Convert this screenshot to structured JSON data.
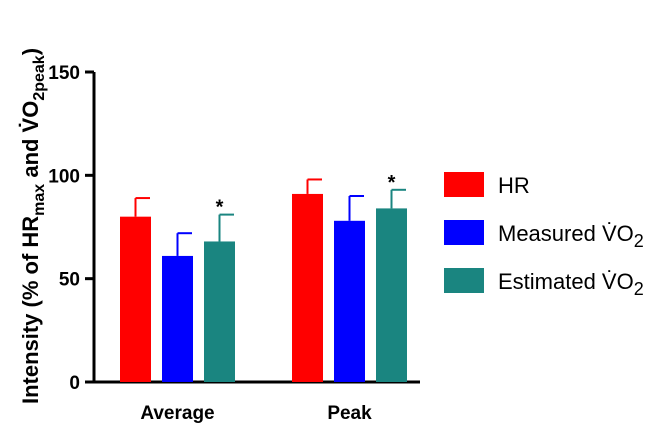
{
  "chart_data": {
    "type": "bar",
    "title": "",
    "xlabel": "",
    "ylabel": {
      "prefix": "Intensity (% of HR",
      "sub1": "max",
      "middle": " and V̇O",
      "sub2": "2peak",
      "suffix": ")"
    },
    "ylim": [
      0,
      150
    ],
    "yticks": [
      "0",
      "50",
      "100",
      "150"
    ],
    "categories": [
      "Average",
      "Peak"
    ],
    "series": [
      {
        "name": "HR",
        "values": [
          80,
          91
        ],
        "errors": [
          9,
          7
        ],
        "significance": [
          "",
          ""
        ],
        "color": "#ff0000"
      },
      {
        "name": "Measured V̇O2",
        "values": [
          61,
          78
        ],
        "errors": [
          11,
          12
        ],
        "significance": [
          "",
          ""
        ],
        "color": "#0000ff"
      },
      {
        "name": "Estimated V̇O2",
        "values": [
          68,
          84
        ],
        "errors": [
          13,
          9
        ],
        "significance": [
          "*",
          "*"
        ],
        "color": "#1a8580"
      }
    ],
    "legend": {
      "position": "right",
      "entries": [
        {
          "text": "HR",
          "sub": ""
        },
        {
          "text": "Measured V̇O",
          "sub": "2"
        },
        {
          "text": "Estimated V̇O",
          "sub": "2"
        }
      ]
    },
    "grid": false
  }
}
